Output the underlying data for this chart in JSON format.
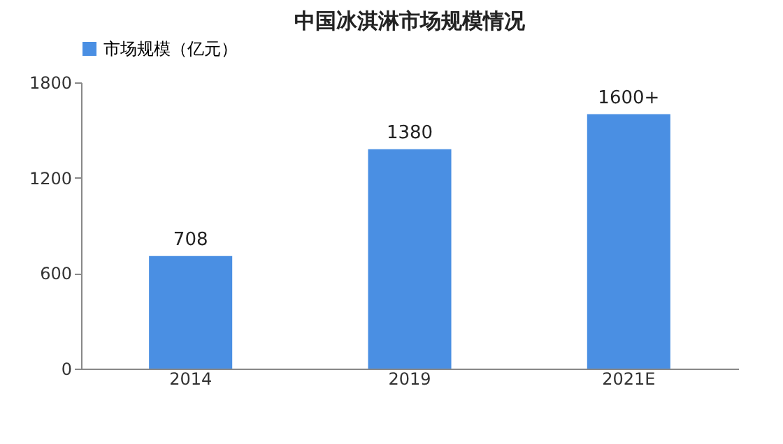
{
  "chart_data": {
    "type": "bar",
    "title": "中国冰淇淋市场规模情况",
    "categories": [
      "2014",
      "2019",
      "2021E"
    ],
    "series": [
      {
        "name": "市场规模（亿元）",
        "color": "#4a8fe3",
        "values": [
          708,
          1380,
          1600
        ],
        "value_labels": [
          "708",
          "1380",
          "1600+"
        ]
      }
    ],
    "ylim": [
      0,
      1800
    ],
    "yticks": [
      0,
      600,
      1200,
      1800
    ],
    "grid": false,
    "legend": "top"
  }
}
